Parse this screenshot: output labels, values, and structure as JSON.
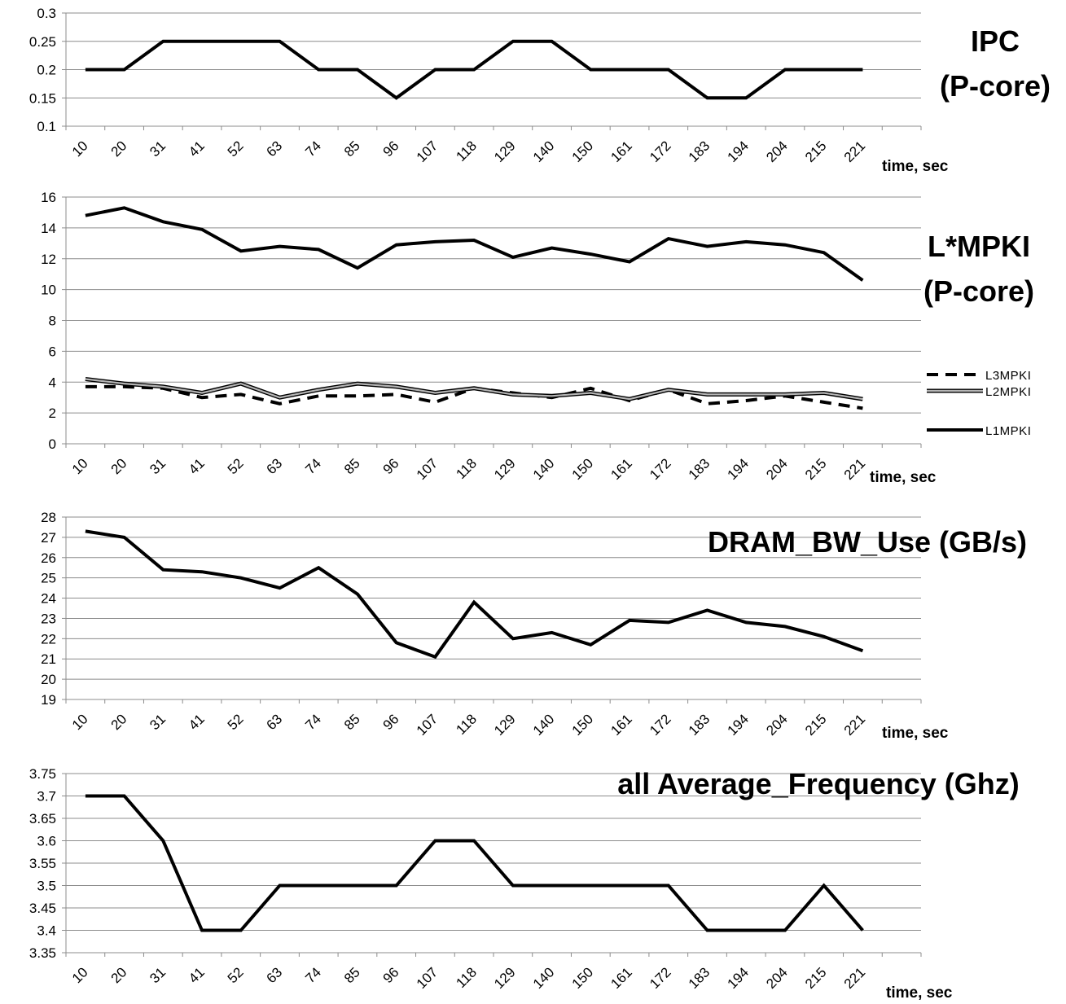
{
  "chart_data": [
    {
      "type": "line",
      "title_lines": [
        "IPC",
        "(P-core)"
      ],
      "xlabel": "time, sec",
      "categories": [
        "10",
        "20",
        "31",
        "41",
        "52",
        "63",
        "74",
        "85",
        "96",
        "107",
        "118",
        "129",
        "140",
        "150",
        "161",
        "172",
        "183",
        "194",
        "204",
        "215",
        "221"
      ],
      "ylim": [
        0.1,
        0.3
      ],
      "yticks": [
        "0.1",
        "0.15",
        "0.2",
        "0.25",
        "0.3"
      ],
      "grid": true,
      "series": [
        {
          "values": [
            0.2,
            0.2,
            0.25,
            0.25,
            0.25,
            0.25,
            0.2,
            0.2,
            0.15,
            0.2,
            0.2,
            0.25,
            0.25,
            0.2,
            0.2,
            0.2,
            0.15,
            0.15,
            0.2,
            0.2,
            0.2
          ],
          "color": "#000000",
          "style": "solid"
        }
      ]
    },
    {
      "type": "line",
      "title_lines": [
        "L*MPKI",
        "(P-core)"
      ],
      "xlabel": "time, sec",
      "categories": [
        "10",
        "20",
        "31",
        "41",
        "52",
        "63",
        "74",
        "85",
        "96",
        "107",
        "118",
        "129",
        "140",
        "150",
        "161",
        "172",
        "183",
        "194",
        "204",
        "215",
        "221"
      ],
      "ylim": [
        0,
        16
      ],
      "yticks": [
        "0",
        "2",
        "4",
        "6",
        "8",
        "10",
        "12",
        "14",
        "16"
      ],
      "grid": true,
      "legend": "right",
      "series": [
        {
          "name": "L3MPKI",
          "style": "dashed",
          "color": "#000000",
          "values": [
            3.7,
            3.7,
            3.6,
            3.0,
            3.2,
            2.6,
            3.1,
            3.1,
            3.2,
            2.7,
            3.6,
            3.3,
            3.0,
            3.6,
            2.8,
            3.5,
            2.6,
            2.8,
            3.1,
            2.7,
            2.3
          ]
        },
        {
          "name": "L2MPKI",
          "style": "double",
          "color": "#9a9a9a",
          "values": [
            4.2,
            3.9,
            3.7,
            3.3,
            3.9,
            3.0,
            3.5,
            3.9,
            3.7,
            3.3,
            3.6,
            3.2,
            3.1,
            3.3,
            2.9,
            3.5,
            3.2,
            3.2,
            3.2,
            3.3,
            2.9
          ]
        },
        {
          "name": "L1MPKI",
          "style": "solid",
          "color": "#000000",
          "values": [
            14.8,
            15.3,
            14.4,
            13.9,
            12.5,
            12.8,
            12.6,
            11.4,
            12.9,
            13.1,
            13.2,
            12.1,
            12.7,
            12.3,
            11.8,
            13.3,
            12.8,
            13.1,
            12.9,
            12.4,
            10.6
          ]
        }
      ]
    },
    {
      "type": "line",
      "title_lines": [
        "DRAM_BW_Use (GB/s)"
      ],
      "xlabel": "time, sec",
      "categories": [
        "10",
        "20",
        "31",
        "41",
        "52",
        "63",
        "74",
        "85",
        "96",
        "107",
        "118",
        "129",
        "140",
        "150",
        "161",
        "172",
        "183",
        "194",
        "204",
        "215",
        "221"
      ],
      "ylim": [
        19,
        28
      ],
      "yticks": [
        "19",
        "20",
        "21",
        "22",
        "23",
        "24",
        "25",
        "26",
        "27",
        "28"
      ],
      "grid": true,
      "series": [
        {
          "values": [
            27.3,
            27.0,
            25.4,
            25.3,
            25.0,
            24.5,
            25.5,
            24.2,
            21.8,
            21.1,
            23.8,
            22.0,
            22.3,
            21.7,
            22.9,
            22.8,
            23.4,
            22.8,
            22.6,
            22.1,
            21.4
          ],
          "color": "#000000",
          "style": "solid"
        }
      ]
    },
    {
      "type": "line",
      "title_lines": [
        "all Average_Frequency (Ghz)"
      ],
      "xlabel": "time, sec",
      "categories": [
        "10",
        "20",
        "31",
        "41",
        "52",
        "63",
        "74",
        "85",
        "96",
        "107",
        "118",
        "129",
        "140",
        "150",
        "161",
        "172",
        "183",
        "194",
        "204",
        "215",
        "221"
      ],
      "ylim": [
        3.35,
        3.75
      ],
      "yticks": [
        "3.35",
        "3.4",
        "3.45",
        "3.5",
        "3.55",
        "3.6",
        "3.65",
        "3.7",
        "3.75"
      ],
      "grid": true,
      "series": [
        {
          "values": [
            3.7,
            3.7,
            3.6,
            3.4,
            3.4,
            3.5,
            3.5,
            3.5,
            3.5,
            3.6,
            3.6,
            3.5,
            3.5,
            3.5,
            3.5,
            3.5,
            3.4,
            3.4,
            3.4,
            3.5,
            3.4
          ],
          "color": "#000000",
          "style": "solid"
        }
      ]
    }
  ]
}
